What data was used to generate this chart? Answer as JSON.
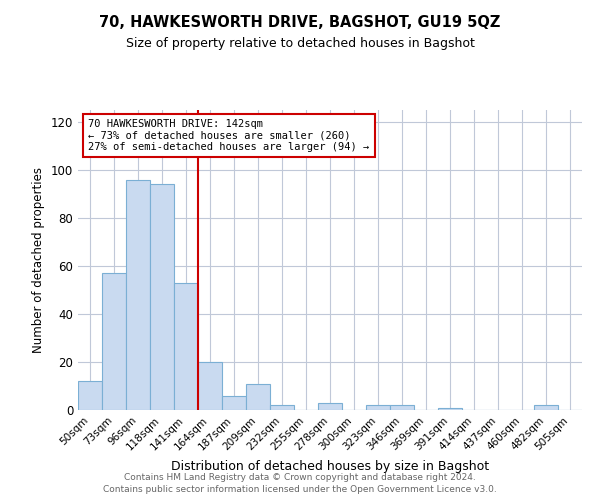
{
  "title": "70, HAWKESWORTH DRIVE, BAGSHOT, GU19 5QZ",
  "subtitle": "Size of property relative to detached houses in Bagshot",
  "xlabel": "Distribution of detached houses by size in Bagshot",
  "ylabel": "Number of detached properties",
  "bar_labels": [
    "50sqm",
    "73sqm",
    "96sqm",
    "118sqm",
    "141sqm",
    "164sqm",
    "187sqm",
    "209sqm",
    "232sqm",
    "255sqm",
    "278sqm",
    "300sqm",
    "323sqm",
    "346sqm",
    "369sqm",
    "391sqm",
    "414sqm",
    "437sqm",
    "460sqm",
    "482sqm",
    "505sqm"
  ],
  "bar_values": [
    12,
    57,
    96,
    94,
    53,
    20,
    6,
    11,
    2,
    0,
    3,
    0,
    2,
    2,
    0,
    1,
    0,
    0,
    0,
    2,
    0
  ],
  "bar_color": "#c9daf0",
  "bar_edgecolor": "#7bafd4",
  "bar_width": 1.0,
  "vline_x": 4.5,
  "vline_color": "#cc0000",
  "annotation_title": "70 HAWKESWORTH DRIVE: 142sqm",
  "annotation_line1": "← 73% of detached houses are smaller (260)",
  "annotation_line2": "27% of semi-detached houses are larger (94) →",
  "annotation_box_color": "#ffffff",
  "annotation_box_edgecolor": "#cc0000",
  "ylim": [
    0,
    125
  ],
  "yticks": [
    0,
    20,
    40,
    60,
    80,
    100,
    120
  ],
  "footer1": "Contains HM Land Registry data © Crown copyright and database right 2024.",
  "footer2": "Contains public sector information licensed under the Open Government Licence v3.0.",
  "bg_color": "#ffffff",
  "grid_color": "#c0c8d8"
}
